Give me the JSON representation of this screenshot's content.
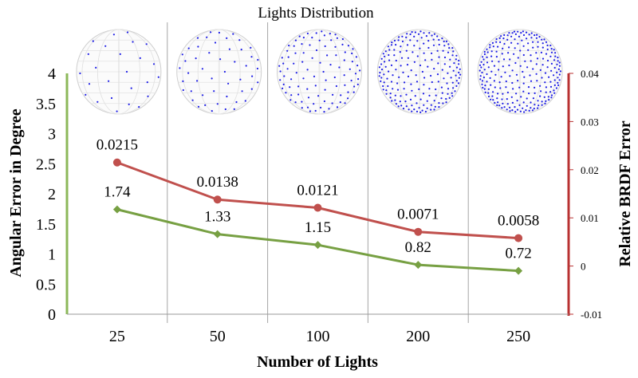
{
  "chart_data": {
    "type": "line",
    "title": "Lights Distribution",
    "xlabel": "Number of Lights",
    "ylabel_left": "Angular Error in Degree",
    "ylabel_right": "Relative BRDF Error",
    "categories": [
      "25",
      "50",
      "100",
      "200",
      "250"
    ],
    "y_left": {
      "ylim": [
        0,
        4
      ],
      "ticks": [
        "0",
        "0.5",
        "1",
        "1.5",
        "2",
        "2.5",
        "3",
        "3.5",
        "4"
      ],
      "color": "#77a043"
    },
    "y_right": {
      "ylim": [
        -0.01,
        0.04
      ],
      "ticks": [
        "-0.01",
        "0",
        "0.01",
        "0.02",
        "0.03",
        "0.04"
      ],
      "color": "#b83232"
    },
    "series": [
      {
        "axis": "left",
        "values": [
          1.74,
          1.33,
          1.15,
          0.82,
          0.72
        ],
        "labels": [
          "1.74",
          "1.33",
          "1.15",
          "0.82",
          "0.72"
        ],
        "color": "#77a043",
        "marker": "diamond"
      },
      {
        "axis": "right",
        "values": [
          0.0215,
          0.0138,
          0.0121,
          0.0071,
          0.0058
        ],
        "labels": [
          "0.0215",
          "0.0138",
          "0.0121",
          "0.0071",
          "0.0058"
        ],
        "color": "#c0504d",
        "marker": "circle"
      }
    ],
    "sphere_light_counts": [
      25,
      50,
      100,
      200,
      250
    ],
    "sphere_dot_color": "#1e1ee6",
    "grid": "vertical category separators"
  }
}
